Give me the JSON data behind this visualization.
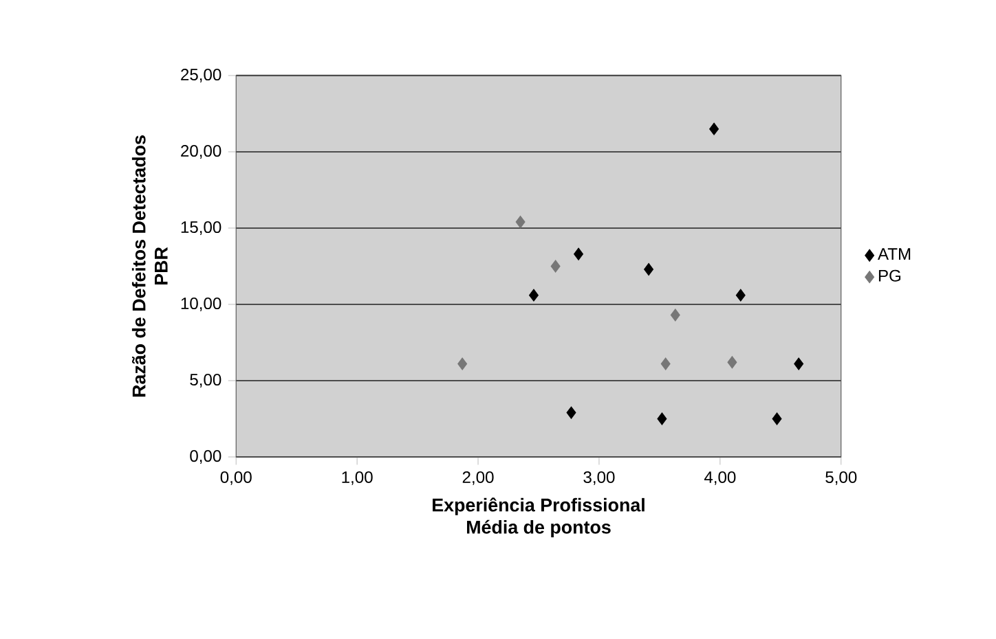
{
  "chart_data": {
    "type": "scatter",
    "xlabel": "Experiência Profissional\nMédia de pontos",
    "ylabel": "Razão de Defeitos Detectados\nPBR",
    "xlim": [
      0,
      5
    ],
    "ylim": [
      0,
      25
    ],
    "xticks": [
      {
        "value": 0,
        "label": "0,00"
      },
      {
        "value": 1,
        "label": "1,00"
      },
      {
        "value": 2,
        "label": "2,00"
      },
      {
        "value": 3,
        "label": "3,00"
      },
      {
        "value": 4,
        "label": "4,00"
      },
      {
        "value": 5,
        "label": "5,00"
      }
    ],
    "yticks": [
      {
        "value": 0,
        "label": "0,00"
      },
      {
        "value": 5,
        "label": "5,00"
      },
      {
        "value": 10,
        "label": "10,00"
      },
      {
        "value": 15,
        "label": "15,00"
      },
      {
        "value": 20,
        "label": "20,00"
      },
      {
        "value": 25,
        "label": "25,00"
      }
    ],
    "grid": "y",
    "legend": "right",
    "marker": "diamond",
    "series": [
      {
        "name": "ATM",
        "color": "#000000",
        "x": [
          3.95,
          2.83,
          3.41,
          2.46,
          4.17,
          4.65,
          2.77,
          3.52,
          4.47
        ],
        "values": [
          21.5,
          13.3,
          12.3,
          10.6,
          10.6,
          6.1,
          2.9,
          2.5,
          2.5
        ]
      },
      {
        "name": "PG",
        "color": "#777777",
        "x": [
          2.35,
          2.64,
          3.63,
          1.87,
          3.55,
          4.1
        ],
        "values": [
          15.4,
          12.5,
          9.3,
          6.1,
          6.1,
          6.2
        ]
      }
    ]
  }
}
